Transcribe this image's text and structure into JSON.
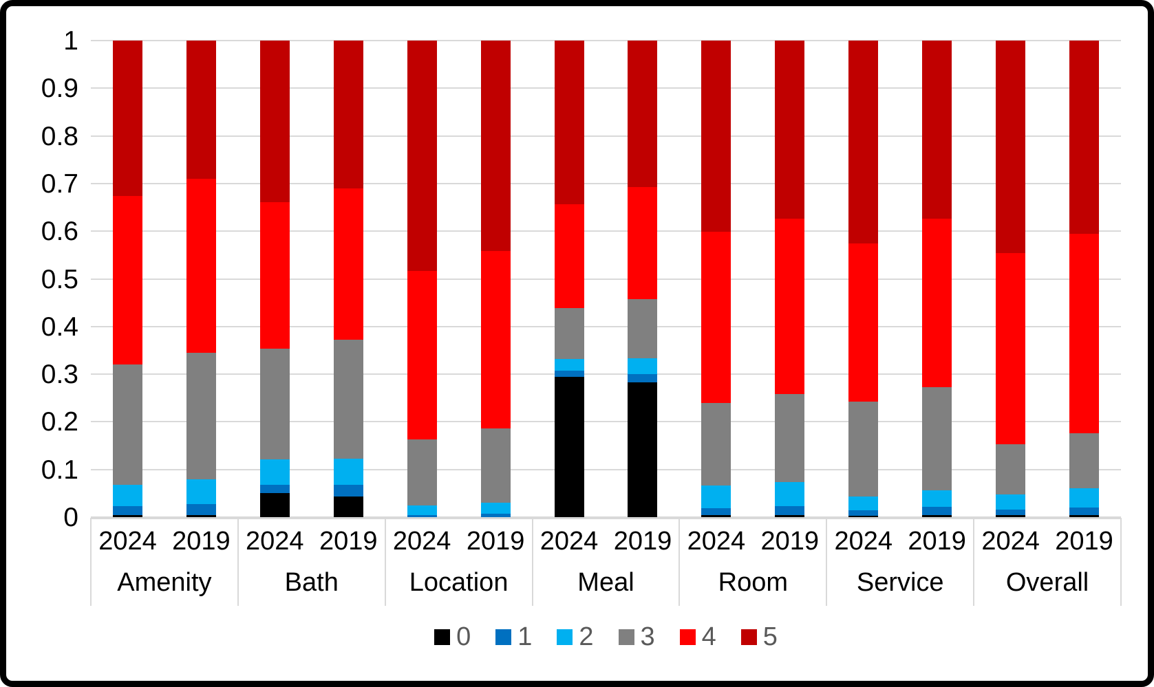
{
  "chart_data": {
    "type": "bar",
    "subtype": "stacked-100-percent",
    "title": "",
    "xlabel": "",
    "ylabel": "",
    "ylim": [
      0,
      1
    ],
    "yticks": [
      "0",
      "0.1",
      "0.2",
      "0.3",
      "0.4",
      "0.5",
      "0.6",
      "0.7",
      "0.8",
      "0.9",
      "1"
    ],
    "grid": true,
    "legend_position": "bottom",
    "categories": [
      "Amenity",
      "Bath",
      "Location",
      "Meal",
      "Room",
      "Service",
      "Overall"
    ],
    "years": [
      "2024",
      "2019"
    ],
    "ratings": [
      "0",
      "1",
      "2",
      "3",
      "4",
      "5"
    ],
    "colors": {
      "0": "#000000",
      "1": "#0070C0",
      "2": "#00B0F0",
      "3": "#808080",
      "4": "#FF0000",
      "5": "#C00000"
    },
    "gridline_color": "#d9d9d9",
    "legend_text_color": "#595959",
    "bars": [
      {
        "category": "Amenity",
        "year": "2024",
        "values": [
          0.005,
          0.018,
          0.045,
          0.252,
          0.354,
          0.326
        ]
      },
      {
        "category": "Amenity",
        "year": "2019",
        "values": [
          0.005,
          0.022,
          0.052,
          0.266,
          0.365,
          0.29
        ]
      },
      {
        "category": "Bath",
        "year": "2024",
        "values": [
          0.05,
          0.018,
          0.053,
          0.232,
          0.308,
          0.339
        ]
      },
      {
        "category": "Bath",
        "year": "2019",
        "values": [
          0.043,
          0.025,
          0.054,
          0.25,
          0.318,
          0.31
        ]
      },
      {
        "category": "Location",
        "year": "2024",
        "values": [
          0.0,
          0.004,
          0.021,
          0.138,
          0.353,
          0.484
        ]
      },
      {
        "category": "Location",
        "year": "2019",
        "values": [
          0.0,
          0.007,
          0.024,
          0.155,
          0.373,
          0.441
        ]
      },
      {
        "category": "Meal",
        "year": "2024",
        "values": [
          0.294,
          0.014,
          0.024,
          0.106,
          0.219,
          0.343
        ]
      },
      {
        "category": "Meal",
        "year": "2019",
        "values": [
          0.283,
          0.017,
          0.034,
          0.123,
          0.235,
          0.308
        ]
      },
      {
        "category": "Room",
        "year": "2024",
        "values": [
          0.004,
          0.015,
          0.047,
          0.174,
          0.359,
          0.401
        ]
      },
      {
        "category": "Room",
        "year": "2019",
        "values": [
          0.004,
          0.019,
          0.05,
          0.185,
          0.369,
          0.373
        ]
      },
      {
        "category": "Service",
        "year": "2024",
        "values": [
          0.003,
          0.011,
          0.029,
          0.199,
          0.333,
          0.425
        ]
      },
      {
        "category": "Service",
        "year": "2019",
        "values": [
          0.004,
          0.018,
          0.035,
          0.216,
          0.354,
          0.373
        ]
      },
      {
        "category": "Overall",
        "year": "2024",
        "values": [
          0.004,
          0.012,
          0.032,
          0.105,
          0.401,
          0.446
        ]
      },
      {
        "category": "Overall",
        "year": "2019",
        "values": [
          0.004,
          0.016,
          0.04,
          0.116,
          0.419,
          0.405
        ]
      }
    ]
  },
  "legend": {
    "items": [
      {
        "label": "0",
        "color": "#000000"
      },
      {
        "label": "1",
        "color": "#0070C0"
      },
      {
        "label": "2",
        "color": "#00B0F0"
      },
      {
        "label": "3",
        "color": "#808080"
      },
      {
        "label": "4",
        "color": "#FF0000"
      },
      {
        "label": "5",
        "color": "#C00000"
      }
    ]
  }
}
